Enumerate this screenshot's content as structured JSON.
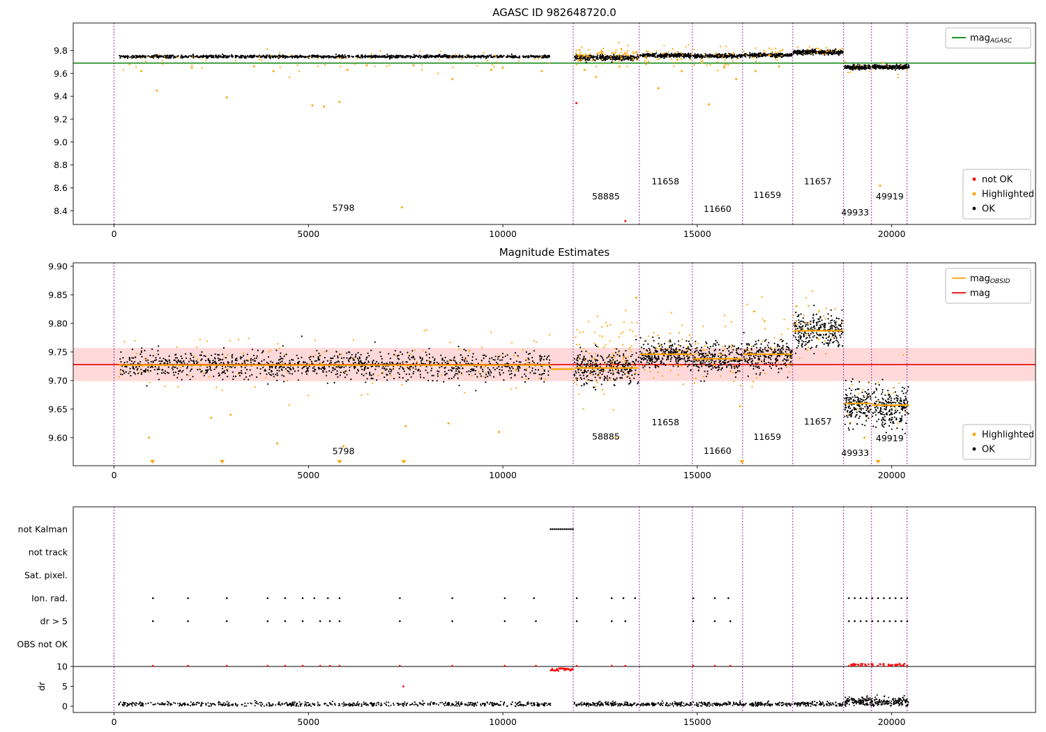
{
  "colors": {
    "ok": "#000000",
    "highlighted": "#ffa500",
    "not_ok": "#ff0000",
    "agasc": "#007f00",
    "obsid": "#ffa500",
    "mag": "#e60000",
    "band": "#ffd9d9",
    "vline": "#800080"
  },
  "obsid_boundaries": [
    0,
    11810,
    13510,
    14875,
    16165,
    17455,
    18760,
    19480,
    20395
  ],
  "chart_data": [
    {
      "type": "scatter",
      "title": "AGASC ID 982648720.0",
      "xlim": [
        -1050,
        23700
      ],
      "ylim": [
        8.28,
        10.04
      ],
      "xticks": [
        {
          "v": 0,
          "t": "0"
        },
        {
          "v": 5000,
          "t": "5000"
        },
        {
          "v": 10000,
          "t": "10000"
        },
        {
          "v": 15000,
          "t": "15000"
        },
        {
          "v": 20000,
          "t": "20000"
        }
      ],
      "yticks": [
        {
          "v": 9.8,
          "t": "9.8"
        },
        {
          "v": 9.6,
          "t": "9.6"
        },
        {
          "v": 9.4,
          "t": "9.4"
        },
        {
          "v": 9.2,
          "t": "9.2"
        },
        {
          "v": 9.0,
          "t": "9.0"
        },
        {
          "v": 8.8,
          "t": "8.8"
        },
        {
          "v": 8.6,
          "t": "8.6"
        },
        {
          "v": 8.4,
          "t": "8.4"
        }
      ],
      "agasc_mag": 9.69,
      "legend_line": [
        {
          "label": "mag",
          "sub": "AGASC",
          "color": "#007f00",
          "marker": "line"
        }
      ],
      "legend_points": [
        {
          "label": "not OK",
          "color": "#ff0000",
          "marker": "dot"
        },
        {
          "label": "Highlighted",
          "color": "#ffa500",
          "marker": "dot"
        },
        {
          "label": "OK",
          "color": "#000000",
          "marker": "dot"
        }
      ],
      "obsid_labels": [
        {
          "text": "5798",
          "x": 5900,
          "y": 8.4
        },
        {
          "text": "58885",
          "x": 12650,
          "y": 8.5
        },
        {
          "text": "11658",
          "x": 14180,
          "y": 8.63
        },
        {
          "text": "11660",
          "x": 15520,
          "y": 8.39
        },
        {
          "text": "11659",
          "x": 16800,
          "y": 8.51
        },
        {
          "text": "11657",
          "x": 18100,
          "y": 8.63
        },
        {
          "text": "49933",
          "x": 19060,
          "y": 8.36
        },
        {
          "text": "49919",
          "x": 19950,
          "y": 8.5
        }
      ],
      "segments": [
        {
          "x0": 120,
          "x1": 11230,
          "mean": 9.747,
          "sd": 0.006,
          "n": 1150,
          "hl_n": 70,
          "hl_dy": -0.04,
          "hl_sd": 0.05
        },
        {
          "x0": 11840,
          "x1": 13490,
          "mean": 9.737,
          "sd": 0.012,
          "n": 300,
          "hl_n": 90,
          "hl_dy": 0.02,
          "hl_sd": 0.035
        },
        {
          "x0": 13530,
          "x1": 14860,
          "mean": 9.757,
          "sd": 0.008,
          "n": 270,
          "hl_n": 35,
          "hl_dy": 0.0,
          "hl_sd": 0.04
        },
        {
          "x0": 14890,
          "x1": 16150,
          "mean": 9.752,
          "sd": 0.008,
          "n": 250,
          "hl_n": 30,
          "hl_dy": -0.02,
          "hl_sd": 0.06
        },
        {
          "x0": 16180,
          "x1": 17440,
          "mean": 9.76,
          "sd": 0.008,
          "n": 250,
          "hl_n": 25,
          "hl_dy": 0.0,
          "hl_sd": 0.04
        },
        {
          "x0": 17470,
          "x1": 18750,
          "mean": 9.786,
          "sd": 0.01,
          "n": 280,
          "hl_n": 20,
          "hl_dy": 0.01,
          "hl_sd": 0.025
        },
        {
          "x0": 18790,
          "x1": 19460,
          "mean": 9.654,
          "sd": 0.009,
          "n": 170,
          "hl_n": 8,
          "hl_dy": 0.0,
          "hl_sd": 0.03
        },
        {
          "x0": 19500,
          "x1": 20450,
          "mean": 9.656,
          "sd": 0.009,
          "n": 220,
          "hl_n": 8,
          "hl_dy": 0.0,
          "hl_sd": 0.03
        }
      ],
      "outliers_highlighted": [
        [
          700,
          9.62
        ],
        [
          1100,
          9.45
        ],
        [
          2000,
          9.65
        ],
        [
          2900,
          9.39
        ],
        [
          3600,
          9.66
        ],
        [
          4100,
          9.62
        ],
        [
          5100,
          9.32
        ],
        [
          5400,
          9.31
        ],
        [
          5800,
          9.35
        ],
        [
          6000,
          9.63
        ],
        [
          6500,
          9.67
        ],
        [
          7400,
          8.43
        ],
        [
          7700,
          9.67
        ],
        [
          8700,
          9.55
        ],
        [
          9700,
          9.63
        ],
        [
          10000,
          9.65
        ],
        [
          11000,
          9.62
        ],
        [
          12100,
          9.63
        ],
        [
          12400,
          9.57
        ],
        [
          13000,
          9.66
        ],
        [
          14000,
          9.47
        ],
        [
          14600,
          9.62
        ],
        [
          15300,
          9.33
        ],
        [
          15700,
          9.65
        ],
        [
          16000,
          9.55
        ],
        [
          16500,
          9.62
        ],
        [
          17100,
          9.66
        ],
        [
          19700,
          8.62
        ]
      ],
      "outliers_not_ok": [
        [
          11890,
          9.34
        ],
        [
          13150,
          8.31
        ]
      ]
    },
    {
      "type": "scatter",
      "title": "Magnitude Estimates",
      "xlim": [
        -1050,
        23700
      ],
      "ylim": [
        9.551,
        9.906
      ],
      "xticks": [
        {
          "v": 0,
          "t": "0"
        },
        {
          "v": 5000,
          "t": "5000"
        },
        {
          "v": 10000,
          "t": "10000"
        },
        {
          "v": 15000,
          "t": "15000"
        },
        {
          "v": 20000,
          "t": "20000"
        }
      ],
      "yticks": [
        {
          "v": 9.9,
          "t": "9.90"
        },
        {
          "v": 9.85,
          "t": "9.85"
        },
        {
          "v": 9.8,
          "t": "9.80"
        },
        {
          "v": 9.75,
          "t": "9.75"
        },
        {
          "v": 9.7,
          "t": "9.70"
        },
        {
          "v": 9.65,
          "t": "9.65"
        },
        {
          "v": 9.6,
          "t": "9.60"
        }
      ],
      "mag": 9.728,
      "mag_band": [
        9.699,
        9.757
      ],
      "legend_line": [
        {
          "label": "mag",
          "sub": "OBSID",
          "color": "#ffa500",
          "marker": "line"
        },
        {
          "label": "mag",
          "sub": "",
          "color": "#e60000",
          "marker": "line"
        }
      ],
      "legend_points": [
        {
          "label": "Highlighted",
          "color": "#ffa500",
          "marker": "dot"
        },
        {
          "label": "OK",
          "color": "#000000",
          "marker": "dot"
        }
      ],
      "obsid_labels": [
        {
          "text": "5798",
          "x": 5900,
          "y": 9.571
        },
        {
          "text": "58885",
          "x": 12650,
          "y": 9.597
        },
        {
          "text": "11658",
          "x": 14180,
          "y": 9.622
        },
        {
          "text": "11660",
          "x": 15520,
          "y": 9.572
        },
        {
          "text": "11659",
          "x": 16800,
          "y": 9.596
        },
        {
          "text": "11657",
          "x": 18100,
          "y": 9.623
        },
        {
          "text": "49933",
          "x": 19060,
          "y": 9.568
        },
        {
          "text": "49919",
          "x": 19950,
          "y": 9.594
        }
      ],
      "segments": [
        {
          "x0": 120,
          "x1": 11230,
          "mean": 9.727,
          "sd": 0.012,
          "n": 1150,
          "line": 9.727,
          "hl_n": 120,
          "hl_sd": 0.028
        },
        {
          "x0": 11230,
          "x1": 11830,
          "n": 0,
          "hl_n": 0,
          "line": 9.72
        },
        {
          "x0": 11840,
          "x1": 13490,
          "mean": 9.722,
          "sd": 0.015,
          "n": 300,
          "line": 9.722,
          "hl_n": 90,
          "hl_sd": 0.035,
          "hl_dy": 0.02
        },
        {
          "x0": 13530,
          "x1": 14860,
          "mean": 9.744,
          "sd": 0.012,
          "n": 270,
          "line": 9.746,
          "hl_n": 40,
          "hl_sd": 0.03,
          "hl_dy": 0.01
        },
        {
          "x0": 14890,
          "x1": 16150,
          "mean": 9.736,
          "sd": 0.012,
          "n": 250,
          "line": 9.738,
          "hl_n": 35,
          "hl_sd": 0.03
        },
        {
          "x0": 16180,
          "x1": 17440,
          "mean": 9.744,
          "sd": 0.013,
          "n": 250,
          "line": 9.746,
          "hl_n": 35,
          "hl_sd": 0.035,
          "hl_dy": 0.01
        },
        {
          "x0": 17470,
          "x1": 18750,
          "mean": 9.786,
          "sd": 0.015,
          "n": 280,
          "line": 9.787,
          "hl_n": 30,
          "hl_sd": 0.03,
          "hl_dy": 0.01
        },
        {
          "x0": 18790,
          "x1": 19460,
          "mean": 9.657,
          "sd": 0.018,
          "n": 170,
          "line": 9.66,
          "hl_n": 12,
          "hl_sd": 0.03
        },
        {
          "x0": 19500,
          "x1": 20450,
          "mean": 9.652,
          "sd": 0.018,
          "n": 220,
          "line": 9.657,
          "hl_n": 12,
          "hl_sd": 0.03
        }
      ],
      "outliers_highlighted": [
        [
          900,
          9.6
        ],
        [
          2500,
          9.635
        ],
        [
          3000,
          9.64
        ],
        [
          4200,
          9.59
        ],
        [
          5900,
          9.585
        ],
        [
          7500,
          9.62
        ],
        [
          8600,
          9.625
        ],
        [
          9900,
          9.61
        ],
        [
          12900,
          9.6
        ],
        [
          13430,
          9.845
        ],
        [
          16100,
          9.655
        ],
        [
          17550,
          9.83
        ],
        [
          19300,
          9.6
        ]
      ],
      "clipped_low_x": [
        990,
        2780,
        5800,
        7450,
        16150,
        19650
      ]
    },
    {
      "type": "flags",
      "xlim": [
        -1050,
        23700
      ],
      "xticks": [
        {
          "v": 0,
          "t": "0"
        },
        {
          "v": 5000,
          "t": "5000"
        },
        {
          "v": 10000,
          "t": "10000"
        },
        {
          "v": 15000,
          "t": "15000"
        },
        {
          "v": 20000,
          "t": "20000"
        }
      ],
      "rows": [
        "not Kalman",
        "not track",
        "Sat. pixel.",
        "Ion. rad.",
        "dr > 5",
        "OBS not OK"
      ],
      "not_kalman_interval": [
        11230,
        11800
      ],
      "ion_rad_x": [
        1000,
        1900,
        2900,
        3950,
        4400,
        4850,
        5150,
        5500,
        5800,
        7350,
        8700,
        10050,
        10800,
        11900,
        12800,
        13100,
        13400,
        14900,
        15450,
        15800,
        18900,
        19050,
        19200,
        19350,
        19500,
        19650,
        19800,
        19950,
        20100,
        20250,
        20400
      ],
      "dr_gt5_x": [
        1000,
        1900,
        2900,
        3950,
        4400,
        4850,
        5300,
        5550,
        5800,
        7350,
        8700,
        10050,
        10850,
        11900,
        12800,
        13150,
        14900,
        15450,
        15850,
        18900,
        19050,
        19200,
        19350,
        19500,
        19650,
        19800,
        19950,
        20100,
        20250,
        20400
      ],
      "dr_axis": {
        "label": "dr",
        "ticks": [
          {
            "v": 10,
            "t": "10"
          },
          {
            "v": 5,
            "t": "5"
          },
          {
            "v": 0,
            "t": "0"
          }
        ],
        "limit": 10,
        "black_segments": [
          {
            "x0": 120,
            "x1": 11230,
            "mean": 0.5,
            "sd": 0.3,
            "n": 620
          },
          {
            "x0": 11840,
            "x1": 13490,
            "mean": 0.5,
            "sd": 0.3,
            "n": 140
          },
          {
            "x0": 13530,
            "x1": 14860,
            "mean": 0.5,
            "sd": 0.3,
            "n": 110
          },
          {
            "x0": 14890,
            "x1": 16150,
            "mean": 0.5,
            "sd": 0.3,
            "n": 100
          },
          {
            "x0": 16180,
            "x1": 17440,
            "mean": 0.5,
            "sd": 0.3,
            "n": 100
          },
          {
            "x0": 17470,
            "x1": 18750,
            "mean": 0.5,
            "sd": 0.3,
            "n": 110
          },
          {
            "x0": 18790,
            "x1": 20450,
            "mean": 1.1,
            "sd": 0.55,
            "n": 260
          }
        ],
        "red_below_cluster": {
          "x0": 11230,
          "x1": 11800,
          "ymin": 8.9,
          "ymax": 9.6,
          "n": 30
        },
        "red_cluster2": {
          "x0": 18900,
          "x1": 20450,
          "n": 40
        },
        "red_extra": [
          [
            7440,
            5
          ]
        ]
      }
    }
  ]
}
